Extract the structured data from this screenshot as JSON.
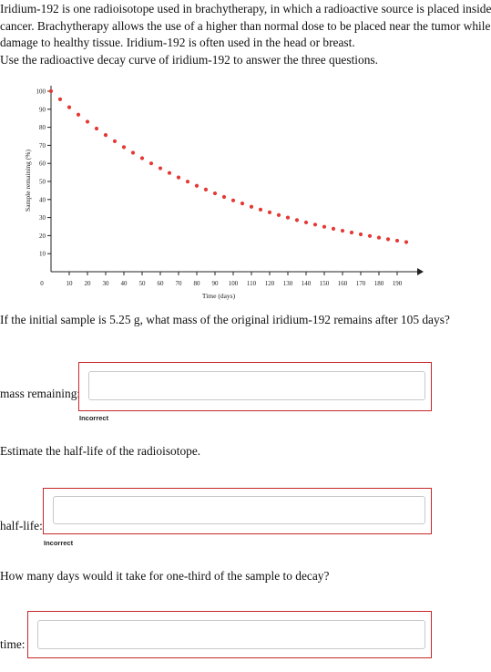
{
  "intro": {
    "lines": [
      "Iridium-192 is one radioisotope used in brachytherapy, in which a radioactive source is placed inside",
      "cancer. Brachytherapy allows the use of a higher than normal dose to be placed near the tumor while",
      "damage to healthy tissue. Iridium-192 is often used in the head or breast."
    ]
  },
  "prompt": "Use the radioactive decay curve of iridium-192 to answer the three questions.",
  "chart_data": {
    "type": "scatter",
    "xlabel": "Time (days)",
    "ylabel": "Sample remaining (%)",
    "xlim": [
      0,
      195
    ],
    "ylim": [
      0,
      100
    ],
    "x_ticks": [
      0,
      10,
      20,
      30,
      40,
      50,
      60,
      70,
      80,
      90,
      100,
      110,
      120,
      130,
      140,
      150,
      160,
      170,
      180,
      190
    ],
    "y_ticks": [
      10,
      20,
      30,
      40,
      50,
      60,
      70,
      80,
      90,
      100
    ],
    "marker_color": "#e53935",
    "grid": false,
    "series": [
      {
        "x": [
          0,
          5,
          10,
          15,
          20,
          25,
          30,
          35,
          40,
          45,
          50,
          55,
          60,
          65,
          70,
          75,
          80,
          85,
          90,
          95,
          100,
          105,
          110,
          115,
          120,
          125,
          130,
          135,
          140,
          145,
          150,
          155,
          160,
          165,
          170,
          175,
          180,
          185,
          190,
          195
        ],
        "y": [
          100,
          95.5,
          91.1,
          87.0,
          83.1,
          79.3,
          75.7,
          72.3,
          69.0,
          65.9,
          62.9,
          60.0,
          57.3,
          54.7,
          52.2,
          49.9,
          47.6,
          45.5,
          43.4,
          41.4,
          39.5,
          37.8,
          36.0,
          34.4,
          32.9,
          31.4,
          30.0,
          28.6,
          27.3,
          26.1,
          24.9,
          23.8,
          22.7,
          21.7,
          20.7,
          19.8,
          18.9,
          18.0,
          17.2,
          16.4
        ]
      }
    ]
  },
  "questions": {
    "q1": {
      "text": "If the initial sample is 5.25 g, what mass of the original iridium-192 remains after 105 days?",
      "label": "mass remaining:",
      "value": "",
      "feedback": "Incorrect"
    },
    "q2": {
      "text": "Estimate the half-life of the radioisotope.",
      "label": "half-life:",
      "value": "",
      "feedback": "Incorrect"
    },
    "q3": {
      "text": "How many days would it take for one-third of the sample to decay?",
      "label": "time:",
      "value": ""
    }
  }
}
